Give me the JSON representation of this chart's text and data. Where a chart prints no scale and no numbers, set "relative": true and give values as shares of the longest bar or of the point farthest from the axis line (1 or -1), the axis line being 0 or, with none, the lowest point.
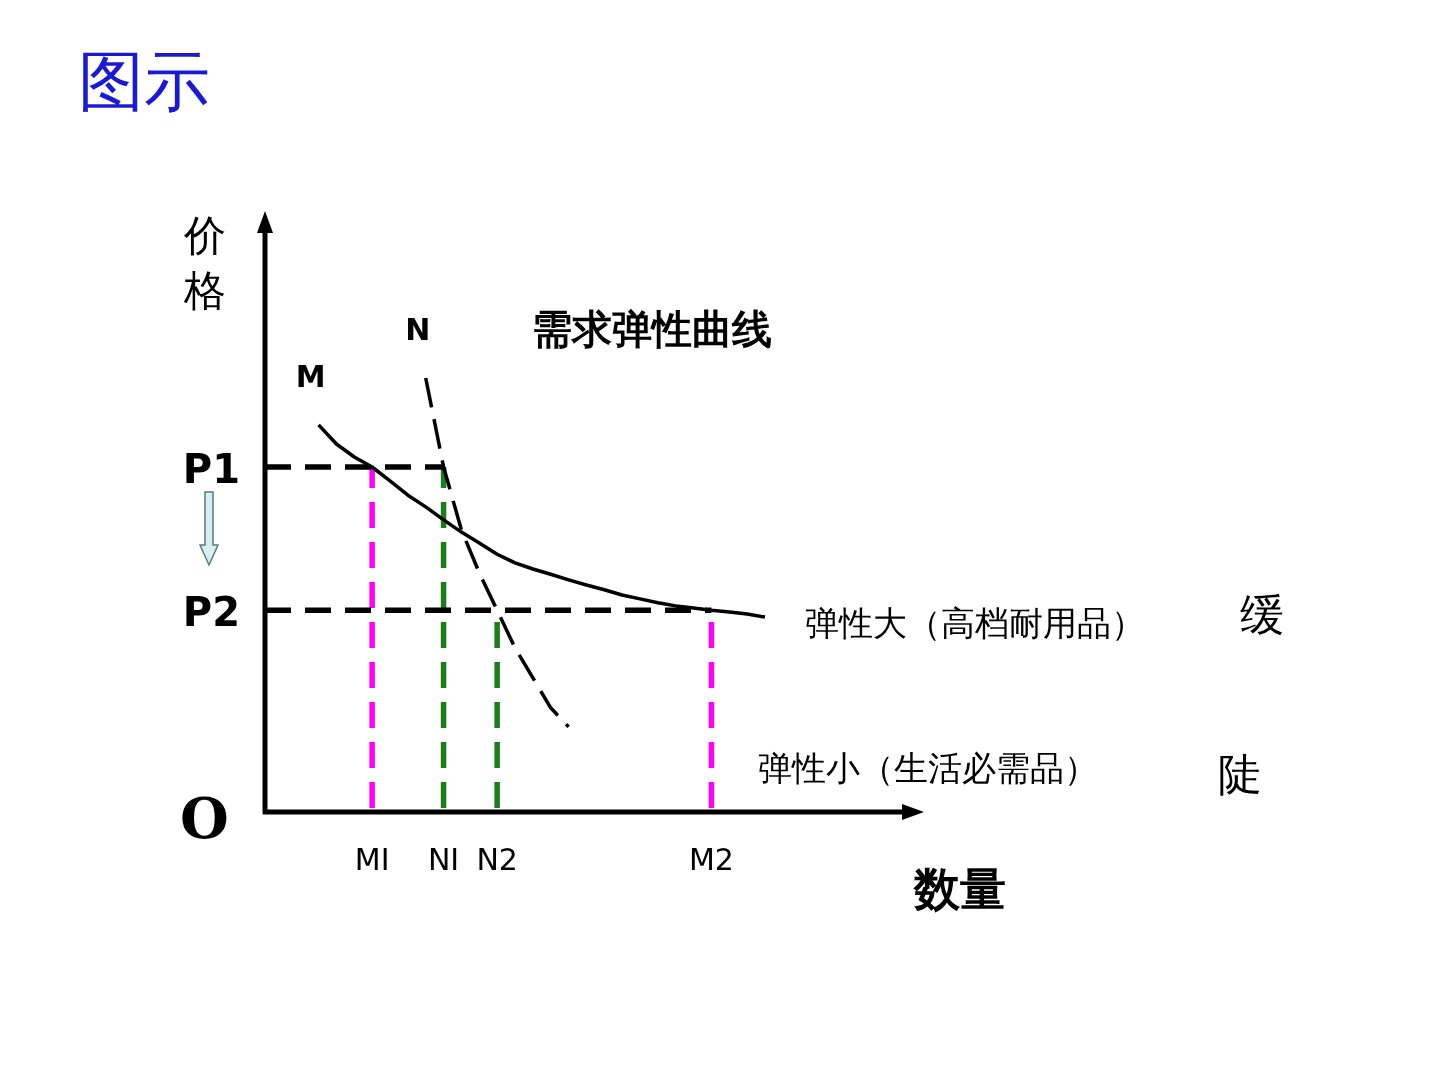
{
  "chart_data": {
    "type": "line",
    "title": "图示",
    "subtitle": "需求弹性曲线",
    "xlabel": "数量",
    "ylabel": "价格",
    "relative": true,
    "marker": "none",
    "categories": [
      null,
      null,
      null,
      null,
      null,
      null,
      "MI",
      null,
      null,
      null,
      "NI",
      null,
      null,
      "N2",
      null,
      null,
      null,
      null,
      null,
      null,
      null,
      null,
      null,
      null,
      null,
      "M2",
      null,
      null,
      null
    ],
    "series": [
      {
        "name": "M",
        "color": "#000000",
        "line_style": "solid",
        "values": [
          null,
          null,
          null,
          0.892,
          0.848,
          0.818,
          0.795,
          0.763,
          0.73,
          0.703,
          0.673,
          0.645,
          0.62,
          0.594,
          0.574,
          0.56,
          0.548,
          0.535,
          0.523,
          0.512,
          0.5,
          0.491,
          0.482,
          0.475,
          0.47,
          0.465,
          0.461,
          0.456,
          0.449
        ]
      },
      {
        "name": "N",
        "color": "#000000",
        "line_style": "dashed",
        "values": [
          null,
          null,
          null,
          null,
          null,
          null,
          null,
          null,
          null,
          1,
          0.795,
          0.65,
          0.551,
          0.465,
          0.378,
          0.309,
          0.24,
          0.196,
          null,
          null,
          null,
          null,
          null,
          null,
          null,
          null,
          null,
          null,
          null
        ]
      },
      {
        "name": "P1",
        "color": "#000000",
        "line_style": "dashed",
        "values": [
          0.795,
          0.795,
          0.795,
          0.795,
          0.795,
          0.795,
          0.795,
          0.795,
          0.795,
          0.795,
          0.795,
          null,
          null,
          null,
          null,
          null,
          null,
          null,
          null,
          null,
          null,
          null,
          null,
          null,
          null,
          null,
          null,
          null,
          null
        ]
      },
      {
        "name": "P2",
        "color": "#000000",
        "line_style": "dashed",
        "values": [
          0.465,
          0.465,
          0.465,
          0.465,
          0.465,
          0.465,
          0.465,
          0.465,
          0.465,
          0.465,
          0.465,
          0.465,
          0.465,
          0.465,
          0.465,
          0.465,
          0.465,
          0.465,
          0.465,
          0.465,
          0.465,
          0.465,
          0.465,
          0.465,
          0.465,
          0.465,
          null,
          null,
          null
        ]
      }
    ],
    "ref_lines": [
      {
        "axis": "x",
        "value": "MI",
        "color": "#ff00ff",
        "line_style": "dashed"
      },
      {
        "axis": "x",
        "value": "NI",
        "color": "#1a7f1a",
        "line_style": "dashed"
      },
      {
        "axis": "x",
        "value": "N2",
        "color": "#1a7f1a",
        "line_style": "dashed"
      },
      {
        "axis": "x",
        "value": "M2",
        "color": "#ff00ff",
        "line_style": "dashed"
      }
    ],
    "annotations": [
      "弹性大（高档耐用品）",
      "缓",
      "弹性小（生活必需品）",
      "陡",
      "O"
    ]
  }
}
